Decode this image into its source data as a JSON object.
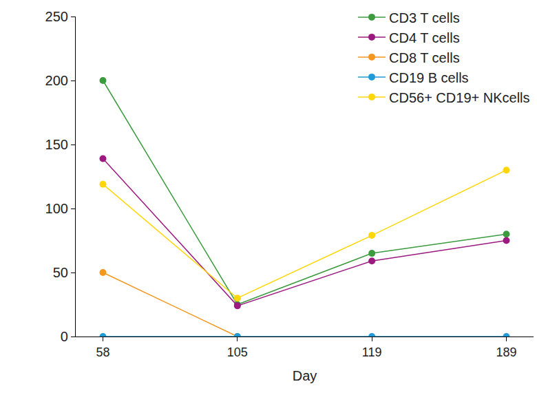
{
  "chart_data": {
    "type": "line",
    "x_label": "Day",
    "categories": [
      "58",
      "105",
      "119",
      "189"
    ],
    "series": [
      {
        "name": "CD3 T cells",
        "color": "#3c9b3f",
        "values": [
          200,
          25,
          65,
          80
        ]
      },
      {
        "name": "CD4 T cells",
        "color": "#9c1a80",
        "values": [
          139,
          24,
          59,
          75
        ]
      },
      {
        "name": "CD8 T cells",
        "color": "#f5961f",
        "values": [
          50,
          0,
          null,
          null
        ]
      },
      {
        "name": "CD19 B cells",
        "color": "#1f9ad7",
        "values": [
          0,
          0,
          0,
          0
        ]
      },
      {
        "name": "CD56+ CD19+ NKcells",
        "color": "#ffd60a",
        "values": [
          119,
          30,
          79,
          130
        ]
      }
    ],
    "ylim": [
      0,
      250
    ],
    "yticks": [
      0,
      50,
      100,
      150,
      200,
      250
    ],
    "grid": false,
    "legend": "top right",
    "marker": "circle",
    "line_style": "solid"
  }
}
